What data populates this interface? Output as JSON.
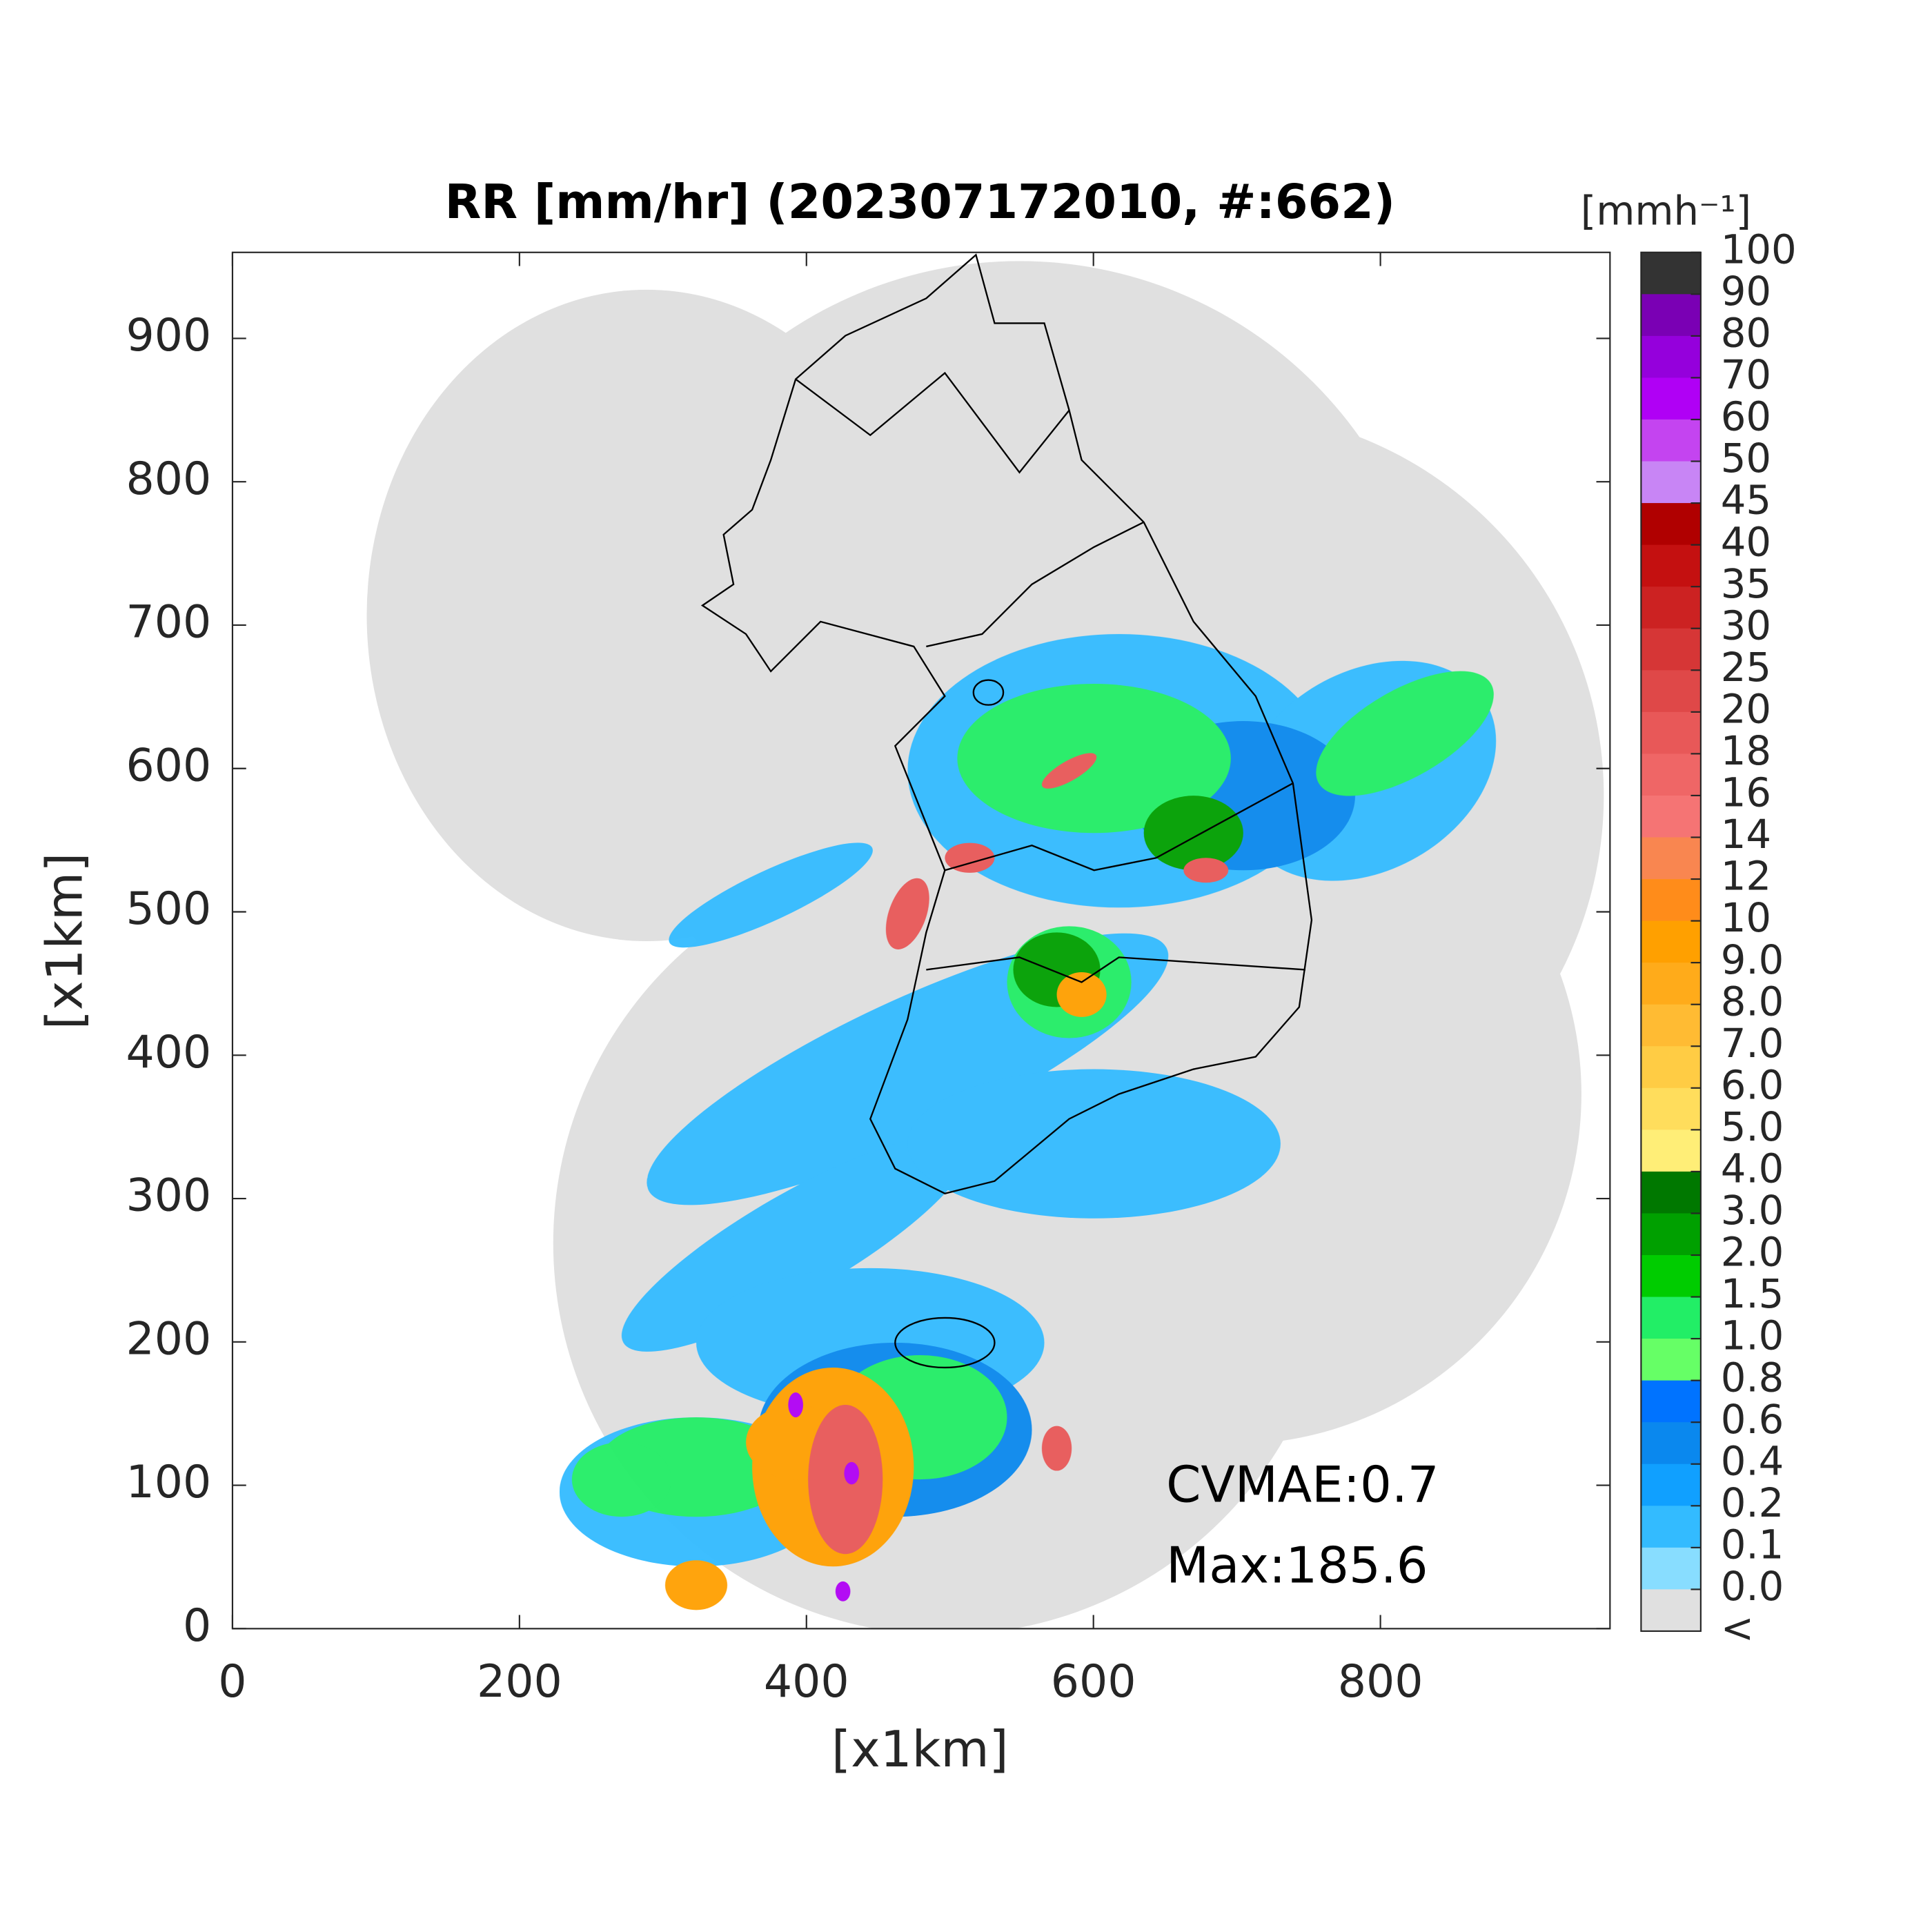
{
  "chart_data": {
    "type": "map",
    "title": "RR [mm/hr] (202307172010, #:662)",
    "x_label": "[x1km]",
    "y_label": "[x1km]",
    "xlim": [
      0,
      960
    ],
    "ylim": [
      0,
      960
    ],
    "xticks": [
      0,
      200,
      400,
      600,
      800
    ],
    "yticks": [
      0,
      100,
      200,
      300,
      400,
      500,
      600,
      700,
      800,
      900
    ],
    "annotations": [
      "CVMAE:0.7",
      "Max:185.6"
    ],
    "colorbar": {
      "label": "[mmh⁻¹]",
      "ticks": [
        100,
        90,
        80,
        70,
        60,
        50,
        45,
        40,
        35,
        30,
        25,
        20,
        18,
        16,
        14,
        12,
        10,
        {
          "value": 9,
          "label": "9.0"
        },
        {
          "value": 8,
          "label": "8.0"
        },
        {
          "value": 7,
          "label": "7.0"
        },
        {
          "value": 6,
          "label": "6.0"
        },
        {
          "value": 5,
          "label": "5.0"
        },
        {
          "value": 4,
          "label": "4.0"
        },
        {
          "value": 3,
          "label": "3.0"
        },
        {
          "value": 2,
          "label": "2.0"
        },
        1.5,
        {
          "value": 1,
          "label": "1.0"
        },
        0.8,
        0.6,
        0.4,
        0.2,
        0.1,
        {
          "value": 0,
          "label": "0.0"
        },
        "<"
      ],
      "colors": [
        "#333333",
        "#7a00b4",
        "#9500dc",
        "#b000f5",
        "#c444f0",
        "#c885f5",
        "#b00000",
        "#c41010",
        "#cc2222",
        "#d63636",
        "#df4848",
        "#e85858",
        "#ef6666",
        "#f57474",
        "#f98650",
        "#ff8c1a",
        "#ffa000",
        "#ffab1a",
        "#ffbb33",
        "#ffcc44",
        "#ffdd5c",
        "#ffee77",
        "#007800",
        "#00a000",
        "#00cc00",
        "#22ee66",
        "#66ff66",
        "#0073ff",
        "#0a88ee",
        "#10a0ff",
        "#33bbff",
        "#88ddff",
        "#e0e0e0",
        "#ffffff"
      ]
    }
  }
}
